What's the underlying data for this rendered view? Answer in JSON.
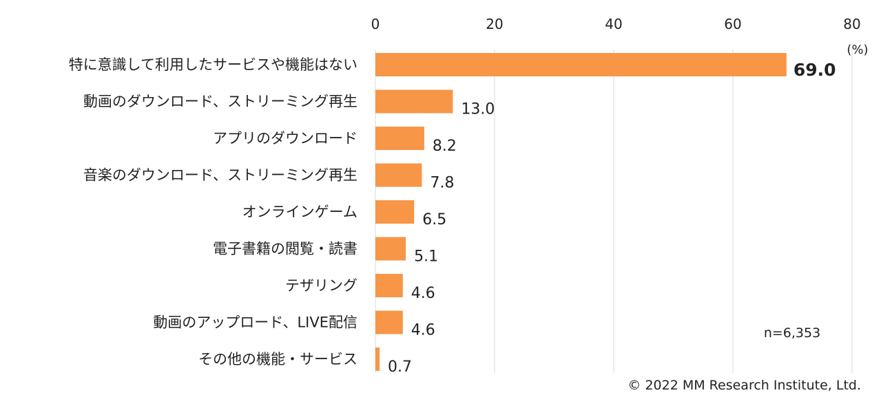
{
  "chart_data": {
    "type": "bar",
    "orientation": "horizontal",
    "categories": [
      "特に意識して利用したサービスや機能はない",
      "動画のダウンロード、ストリーミング再生",
      "アプリのダウンロード",
      "音楽のダウンロード、ストリーミング再生",
      "オンラインゲーム",
      "電子書籍の閲覧・読書",
      "テザリング",
      "動画のアップロード、LIVE配信",
      "その他の機能・サービス"
    ],
    "values": [
      69.0,
      13.0,
      8.2,
      7.8,
      6.5,
      5.1,
      4.6,
      4.6,
      0.7
    ],
    "value_labels": [
      "69.0",
      "13.0",
      "8.2",
      "7.8",
      "6.5",
      "5.1",
      "4.6",
      "4.6",
      "0.7"
    ],
    "highlight_index": 0,
    "xlim": [
      0,
      80
    ],
    "x_ticks": [
      "0",
      "20",
      "40",
      "60",
      "80"
    ],
    "x_axis_position": "top",
    "unit": "(%)",
    "grid": true,
    "bar_color": "#F79646",
    "grid_color": "#D9D9D9",
    "sample_note": "n=6,353",
    "copyright": "© 2022 MM Research Institute, Ltd."
  }
}
